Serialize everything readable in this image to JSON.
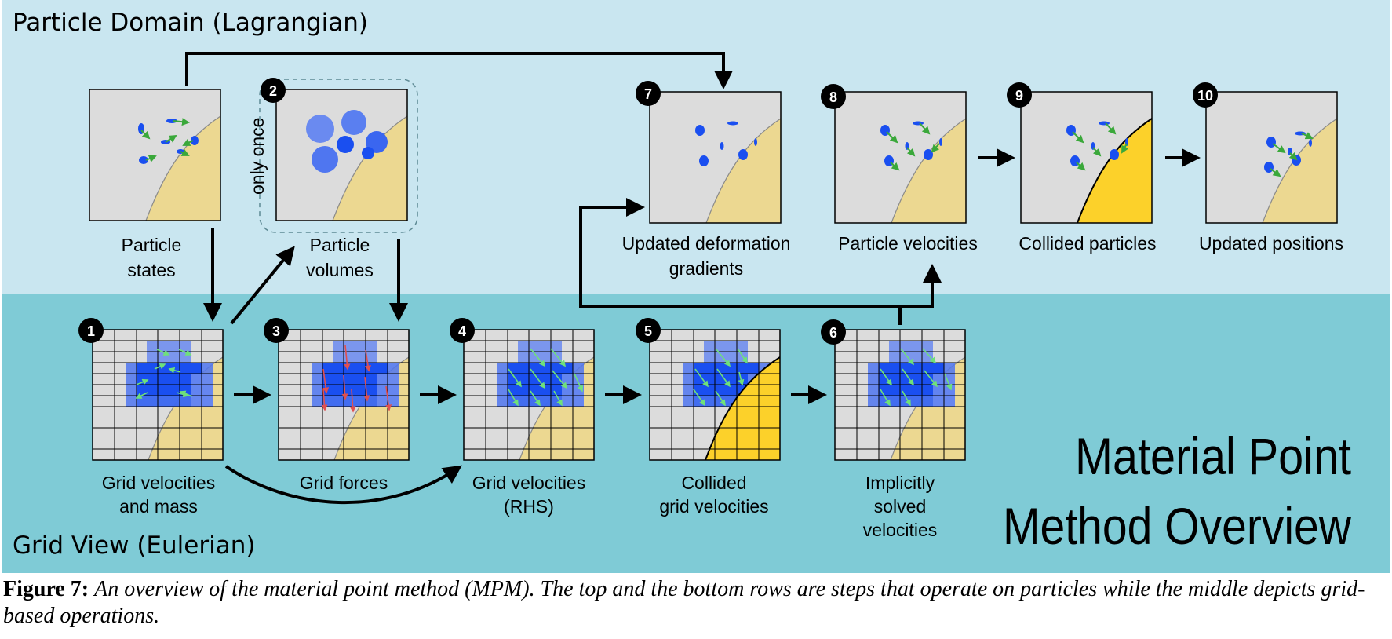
{
  "regions": {
    "particle_title": "Particle Domain (Lagrangian)",
    "grid_title": "Grid View (Eulerian)",
    "main_title_line1": "Material Point",
    "main_title_line2": "Method Overview"
  },
  "panels": {
    "particle_states": {
      "badge": "",
      "label": [
        "Particle",
        "states"
      ]
    },
    "p2": {
      "badge": "2",
      "label": [
        "Particle",
        "volumes"
      ],
      "side_note": "only once"
    },
    "p7": {
      "badge": "7",
      "label": [
        "Updated deformation",
        "gradients"
      ]
    },
    "p8": {
      "badge": "8",
      "label": [
        "Particle velocities"
      ]
    },
    "p9": {
      "badge": "9",
      "label": [
        "Collided particles"
      ]
    },
    "p10": {
      "badge": "10",
      "label": [
        "Updated positions"
      ]
    },
    "g1": {
      "badge": "1",
      "label": [
        "Grid velocities",
        "and mass"
      ]
    },
    "g3": {
      "badge": "3",
      "label": [
        "Grid forces"
      ]
    },
    "g4": {
      "badge": "4",
      "label": [
        "Grid velocities",
        "(RHS)"
      ]
    },
    "g5": {
      "badge": "5",
      "label": [
        "Collided",
        "grid velocities"
      ]
    },
    "g6": {
      "badge": "6",
      "label": [
        "Implicitly",
        "solved",
        "velocities"
      ]
    }
  },
  "caption": {
    "label": "Figure 7:",
    "text": "An overview of the material point method (MPM). The top and the bottom rows are steps that operate on particles while the middle depicts grid-based operations."
  },
  "colors": {
    "particle_bg": "#c9e6f0",
    "grid_bg": "#7fcbd6",
    "panel_bg": "#dcdcdc",
    "sand": "#ecd891",
    "sand_collided": "#fcd12a",
    "particle_blue": "#1a4ff0",
    "arrow_green": "#3aa83a"
  }
}
